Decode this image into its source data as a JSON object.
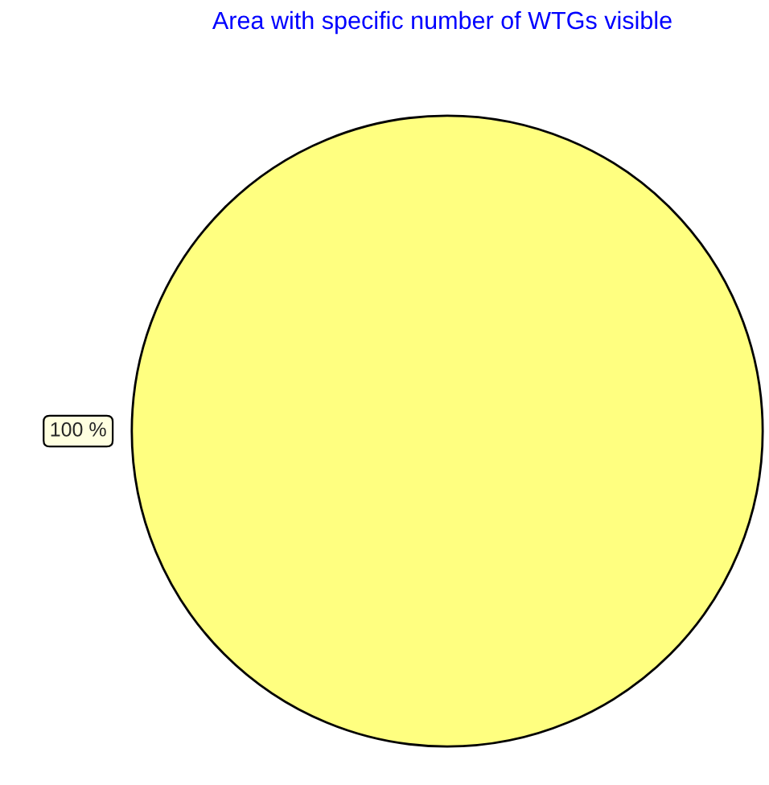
{
  "chart_data": {
    "type": "pie",
    "title": "Area with specific number of WTGs visible",
    "categories": [
      null
    ],
    "values": [
      100
    ],
    "colors": [
      "#ffff80"
    ],
    "value_labels": [
      "100 %"
    ],
    "legend": false
  }
}
